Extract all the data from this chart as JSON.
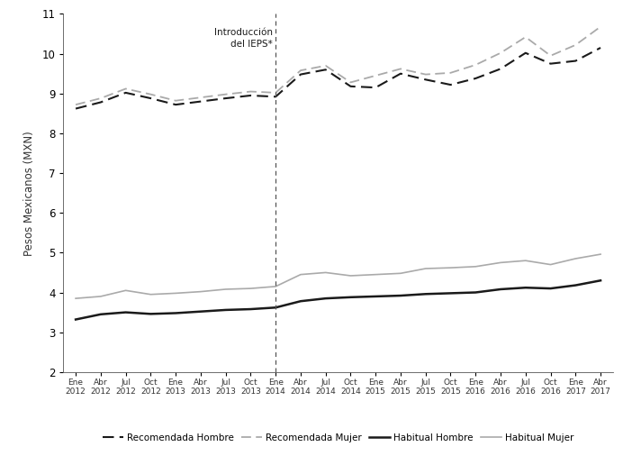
{
  "ylabel": "Pesos Mexicanos (MXN)",
  "ylim": [
    2,
    11
  ],
  "yticks": [
    2,
    3,
    4,
    5,
    6,
    7,
    8,
    9,
    10,
    11
  ],
  "vline_label": "Introducción\ndel IEPS*",
  "background_color": "#ffffff",
  "tick_labels": [
    "Ene\n2012",
    "Abr\n2012",
    "Jul\n2012",
    "Oct\n2012",
    "Ene\n2013",
    "Abr\n2013",
    "Jul\n2013",
    "Oct\n2013",
    "Ene\n2014",
    "Abr\n2014",
    "Jul\n2014",
    "Oct\n2014",
    "Ene\n2015",
    "Abr\n2015",
    "Jul\n2015",
    "Oct\n2015",
    "Ene\n2016",
    "Abr\n2016",
    "Jul\n2016",
    "Oct\n2016",
    "Ene\n2017",
    "Abr\n2017"
  ],
  "rec_hombre": [
    8.62,
    8.78,
    9.02,
    8.88,
    8.72,
    8.8,
    8.88,
    8.95,
    8.92,
    9.48,
    9.6,
    9.18,
    9.15,
    9.5,
    9.35,
    9.22,
    9.38,
    9.62,
    10.02,
    9.75,
    9.82,
    10.15
  ],
  "rec_mujer": [
    8.72,
    8.88,
    9.12,
    8.98,
    8.82,
    8.9,
    8.98,
    9.05,
    9.02,
    9.58,
    9.7,
    9.28,
    9.45,
    9.62,
    9.48,
    9.52,
    9.72,
    10.02,
    10.42,
    9.95,
    10.22,
    10.68
  ],
  "hab_hombre": [
    3.32,
    3.45,
    3.5,
    3.46,
    3.48,
    3.52,
    3.56,
    3.58,
    3.62,
    3.78,
    3.85,
    3.88,
    3.9,
    3.92,
    3.96,
    3.98,
    4.0,
    4.08,
    4.12,
    4.1,
    4.18,
    4.3
  ],
  "hab_mujer": [
    3.85,
    3.9,
    4.05,
    3.95,
    3.98,
    4.02,
    4.08,
    4.1,
    4.15,
    4.45,
    4.5,
    4.42,
    4.45,
    4.48,
    4.6,
    4.62,
    4.65,
    4.75,
    4.8,
    4.7,
    4.85,
    4.96
  ],
  "color_dark": "#1a1a1a",
  "color_light": "#aaaaaa",
  "vline_x": 8
}
